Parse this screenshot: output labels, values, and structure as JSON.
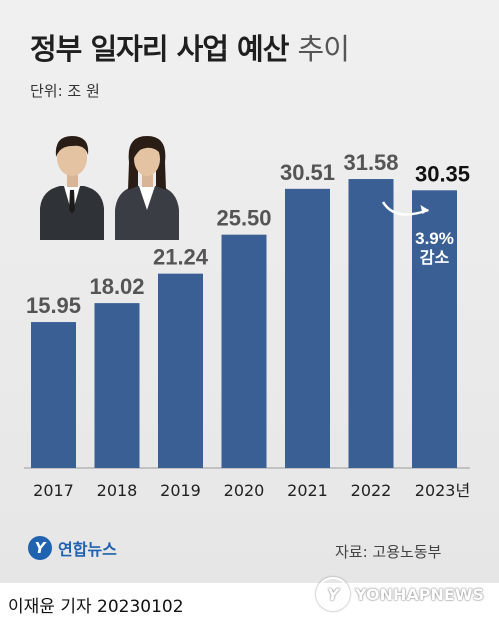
{
  "header": {
    "title_main": "정부 일자리 사업 예산",
    "title_light": "추이",
    "unit": "단위: 조 원"
  },
  "chart_data": {
    "type": "bar",
    "categories": [
      "2017",
      "2018",
      "2019",
      "2020",
      "2021",
      "2022",
      "2023년"
    ],
    "values": [
      15.95,
      18.02,
      21.24,
      25.5,
      30.51,
      31.58,
      30.35
    ],
    "value_labels": [
      "15.95",
      "18.02",
      "21.24",
      "25.50",
      "30.51",
      "31.58",
      "30.35"
    ],
    "annotation": {
      "line1": "3.9%",
      "line2": "감소"
    },
    "bar_color": "#3a5f95",
    "highlight_color": "#111111",
    "label_color": "#555555",
    "annotation_color": "#ffffff"
  },
  "footer": {
    "logo_text": "연합뉴스",
    "source": "자료: 고용노동부",
    "byline": "이재윤 기자  20230102",
    "watermark": "YONHAPNEWS"
  }
}
